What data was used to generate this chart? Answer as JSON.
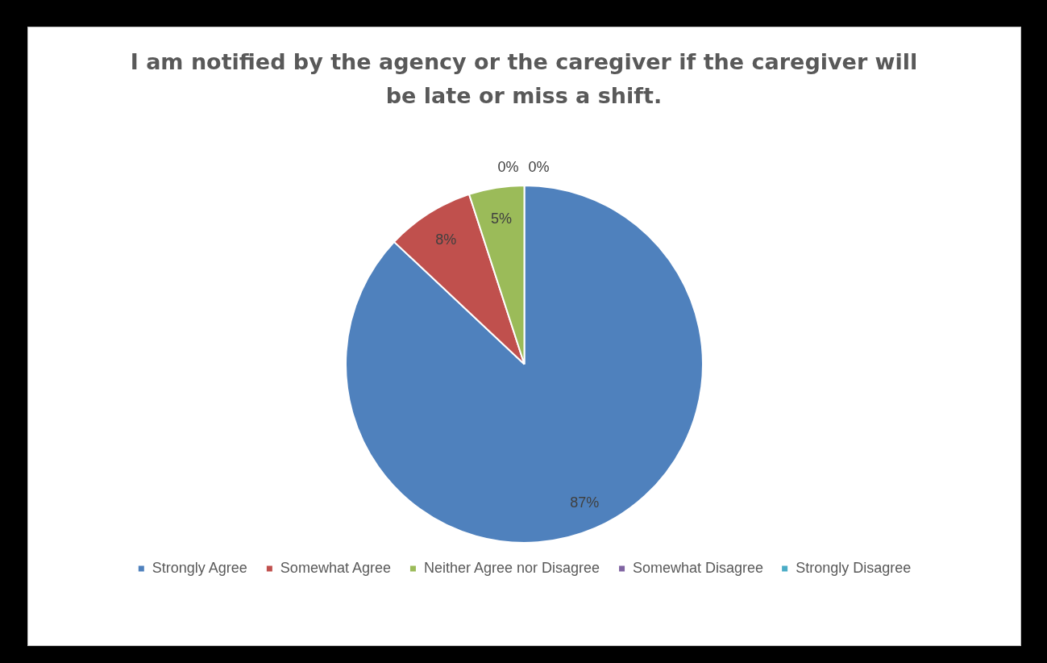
{
  "chart_data": {
    "type": "pie",
    "title": "I am notified by the agency or the caregiver if the caregiver will be late or miss a shift.",
    "categories": [
      "Strongly Agree",
      "Somewhat Agree",
      "Neither Agree nor Disagree",
      "Somewhat Disagree",
      "Strongly Disagree"
    ],
    "values": [
      87,
      8,
      5,
      0,
      0
    ],
    "colors": [
      "#4f81bd",
      "#c0504d",
      "#9bbb59",
      "#8064a2",
      "#4bacc6"
    ],
    "value_labels": [
      "87%",
      "8%",
      "5%",
      "0%",
      "0%"
    ],
    "legend": "bottom"
  }
}
